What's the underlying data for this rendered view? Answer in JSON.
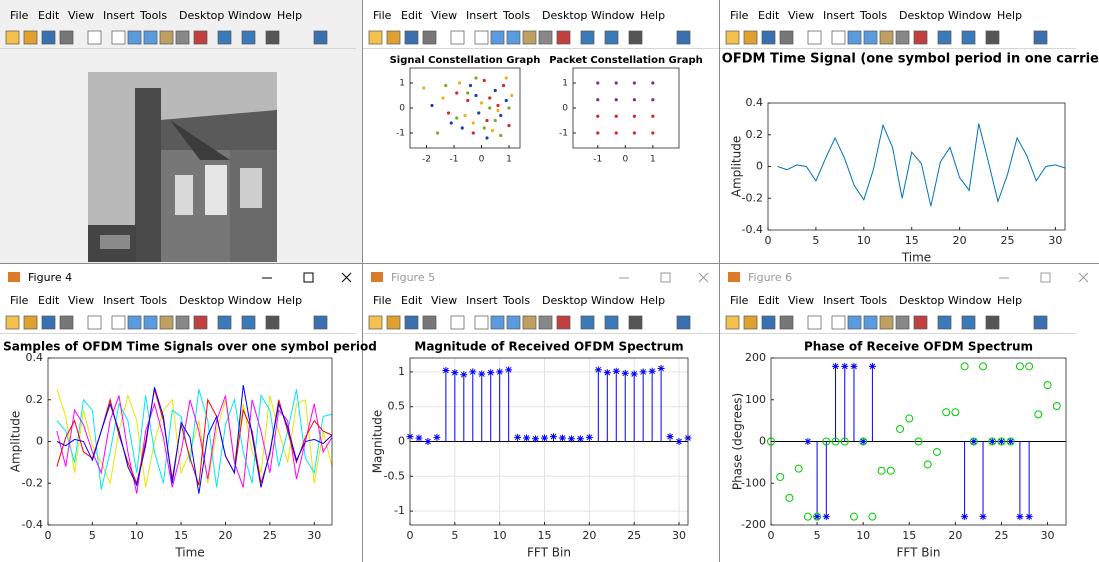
{
  "menu": [
    "File",
    "Edit",
    "View",
    "Insert",
    "Tools",
    "Desktop",
    "Window",
    "Help"
  ],
  "window_titles": [
    "Figure 4",
    "Figure 5",
    "Figure 6"
  ],
  "chart_data": [
    {
      "type": "scatter",
      "title": "Signal Constellation Graph",
      "xlim": [
        -2.6,
        1.4
      ],
      "xticks": [
        -2,
        -1,
        0,
        1
      ],
      "ylim": [
        -1.6,
        1.6
      ],
      "yticks": [
        -1,
        0,
        1
      ],
      "series": [
        {
          "color": "#d62728",
          "x": [
            -0.5,
            0.2,
            0.8,
            -1.2,
            0.1,
            -0.3,
            0.6,
            -0.9,
            1.0,
            0.3
          ],
          "values": [
            0.3,
            -0.5,
            0.9,
            -0.2,
            1.1,
            -1.0,
            0.1,
            0.6,
            -0.7,
            0.4
          ]
        },
        {
          "color": "#1f3fbf",
          "x": [
            -0.1,
            0.5,
            -0.7,
            -1.8,
            0.9,
            -0.4,
            0.2,
            -1.1,
            0.7,
            -0.2
          ],
          "values": [
            -0.2,
            0.7,
            -0.8,
            0.1,
            0.3,
            0.9,
            -1.2,
            -0.6,
            -0.3,
            0.5
          ]
        },
        {
          "color": "#edb120",
          "x": [
            -2.1,
            -0.6,
            0.4,
            1.1,
            -1.4,
            0.0,
            -0.8,
            0.6,
            -0.3,
            0.9
          ],
          "values": [
            0.8,
            -0.3,
            -0.9,
            0.5,
            0.4,
            0.2,
            1.0,
            -0.1,
            -0.6,
            1.2
          ]
        },
        {
          "color": "#77ac30",
          "x": [
            -1.6,
            0.3,
            -0.2,
            0.7,
            -0.9,
            1.0,
            -0.5,
            0.1,
            -1.3,
            0.5
          ],
          "values": [
            -1.0,
            0.0,
            1.2,
            -1.1,
            -0.4,
            0.0,
            0.6,
            -0.8,
            0.9,
            -0.5
          ]
        }
      ]
    },
    {
      "type": "scatter",
      "title": "Packet Constellation Graph",
      "xlim": [
        -1.9,
        1.95
      ],
      "xticks": [
        -1,
        0,
        1
      ],
      "ylim": [
        -1.6,
        1.6
      ],
      "yticks": [
        -1,
        0,
        1
      ],
      "series": [
        {
          "color": "#7e2f8e",
          "x": [
            -1,
            -0.33,
            0.33,
            1,
            -1,
            -0.33,
            0.33,
            1
          ],
          "values": [
            1,
            1,
            1,
            1,
            0.33,
            0.33,
            0.33,
            0.33
          ]
        },
        {
          "color": "#d62728",
          "x": [
            -1,
            -0.33,
            0.33,
            1,
            -1,
            -0.33,
            0.33,
            1
          ],
          "values": [
            -0.33,
            -0.33,
            -0.33,
            -0.33,
            -1,
            -1,
            -1,
            -1
          ]
        }
      ]
    },
    {
      "type": "line",
      "title": "OFDM Time Signal (one symbol period in one carrier)",
      "xlabel": "Time",
      "ylabel": "Amplitude",
      "xlim": [
        0,
        31
      ],
      "xticks": [
        0,
        5,
        10,
        15,
        20,
        25,
        30
      ],
      "ylim": [
        -0.4,
        0.4
      ],
      "yticks": [
        -0.4,
        -0.2,
        0,
        0.2,
        0.4
      ],
      "x": [
        1,
        2,
        3,
        4,
        5,
        6,
        7,
        8,
        9,
        10,
        11,
        12,
        13,
        14,
        15,
        16,
        17,
        18,
        19,
        20,
        21,
        22,
        23,
        24,
        25,
        26,
        27,
        28,
        29,
        30,
        31
      ],
      "series": [
        {
          "color": "#0072bd",
          "values": [
            0,
            -0.02,
            0.01,
            0,
            -0.09,
            0.05,
            0.18,
            0.05,
            -0.12,
            -0.21,
            -0.02,
            0.26,
            0.12,
            -0.2,
            0.09,
            0.02,
            -0.25,
            0.03,
            0.12,
            -0.07,
            -0.15,
            0.27,
            0.03,
            -0.22,
            -0.05,
            0.18,
            0.07,
            -0.09,
            0,
            0.01,
            -0.01
          ]
        }
      ]
    },
    {
      "type": "line",
      "title": "Samples of OFDM Time Signals over one symbol period",
      "xlabel": "Time",
      "ylabel": "Amplitude",
      "xlim": [
        0,
        32
      ],
      "xticks": [
        0,
        5,
        10,
        15,
        20,
        25,
        30
      ],
      "ylim": [
        -0.4,
        0.4
      ],
      "yticks": [
        -0.4,
        -0.2,
        0,
        0.2,
        0.4
      ],
      "x": [
        1,
        2,
        3,
        4,
        5,
        6,
        7,
        8,
        9,
        10,
        11,
        12,
        13,
        14,
        15,
        16,
        17,
        18,
        19,
        20,
        21,
        22,
        23,
        24,
        25,
        26,
        27,
        28,
        29,
        30,
        31,
        32
      ],
      "series": [
        {
          "color": "#e6e600",
          "values": [
            0.25,
            0.12,
            -0.15,
            0.15,
            -0.02,
            -0.1,
            -0.2,
            0.05,
            0.22,
            0.1,
            -0.22,
            0,
            0.15,
            0.2,
            -0.15,
            -0.05,
            0.1,
            -0.2,
            0.05,
            0.2,
            -0.1,
            0.18,
            -0.05,
            -0.15,
            0.22,
            0.05,
            -0.1,
            0.18,
            0.2,
            -0.2,
            0.05,
            -0.12
          ]
        },
        {
          "color": "#00e5ff",
          "values": [
            0.1,
            0.05,
            -0.1,
            0.2,
            0.15,
            -0.23,
            -0.05,
            0.18,
            0.1,
            -0.15,
            0.22,
            -0.05,
            -0.2,
            0.15,
            0.12,
            -0.1,
            0.25,
            0.1,
            -0.22,
            0.08,
            0.2,
            -0.05,
            -0.2,
            0.22,
            0.15,
            -0.12,
            0.05,
            0.25,
            -0.08,
            -0.15,
            0.12,
            0.13
          ]
        },
        {
          "color": "#ff00ff",
          "values": [
            0.05,
            -0.12,
            0.15,
            0.08,
            -0.05,
            -0.15,
            0.1,
            0.22,
            -0.05,
            -0.25,
            0.05,
            0.18,
            0.02,
            -0.22,
            -0.05,
            0.2,
            0.05,
            -0.18,
            0.1,
            0.22,
            -0.1,
            -0.22,
            0.2,
            0.05,
            -0.15,
            0.15,
            0.1,
            -0.18,
            0,
            0.18,
            -0.05,
            0.02
          ]
        },
        {
          "color": "#ff0000",
          "values": [
            -0.12,
            0.02,
            0.1,
            -0.05,
            -0.08,
            0.05,
            0.2,
            0.03,
            -0.1,
            -0.2,
            0,
            0.25,
            0.1,
            -0.18,
            0.08,
            -0.08,
            -0.21,
            0.2,
            0.12,
            -0.07,
            -0.15,
            0.15,
            0.05,
            -0.2,
            -0.06,
            0.2,
            0.05,
            -0.1,
            0.02,
            0.1,
            0.05,
            0.03
          ]
        },
        {
          "color": "#0000ff",
          "values": [
            0,
            -0.02,
            0.01,
            0,
            -0.09,
            0.05,
            0.18,
            0.05,
            -0.12,
            -0.21,
            -0.02,
            0.26,
            0.12,
            -0.2,
            0.09,
            0.02,
            -0.25,
            0.03,
            0.12,
            -0.07,
            -0.15,
            0.27,
            0.03,
            -0.22,
            -0.05,
            0.18,
            0.07,
            -0.09,
            0,
            0.01,
            -0.01,
            0.03
          ]
        }
      ]
    },
    {
      "type": "stem",
      "title": "Magnitude of Received OFDM Spectrum",
      "xlabel": "FFT Bin",
      "ylabel": "Magnitude",
      "grid": true,
      "xlim": [
        0,
        31
      ],
      "xticks": [
        0,
        5,
        10,
        15,
        20,
        25,
        30
      ],
      "ylim": [
        -1.2,
        1.2
      ],
      "yticks": [
        -1,
        -0.5,
        0,
        0.5,
        1
      ],
      "x": [
        0,
        1,
        2,
        3,
        4,
        5,
        6,
        7,
        8,
        9,
        10,
        11,
        12,
        13,
        14,
        15,
        16,
        17,
        18,
        19,
        20,
        21,
        22,
        23,
        24,
        25,
        26,
        27,
        28,
        29,
        30,
        31
      ],
      "series": [
        {
          "color": "#0000ff",
          "marker": "*",
          "stem": true,
          "values": [
            0.07,
            0.05,
            0.0,
            0.06,
            1.02,
            0.99,
            0.96,
            1.0,
            0.97,
            0.99,
            1.0,
            1.03,
            0.06,
            0.05,
            0.04,
            0.05,
            0.07,
            0.05,
            0.04,
            0.04,
            0.06,
            1.03,
            0.99,
            1.01,
            0.98,
            0.97,
            1.0,
            1.01,
            1.05,
            0.07,
            0.0,
            0.05
          ]
        }
      ]
    },
    {
      "type": "stem",
      "title": "Phase of Receive OFDM Spectrum",
      "xlabel": "FFT Bin",
      "ylabel": "Phase (degrees)",
      "xlim": [
        0,
        32
      ],
      "xticks": [
        0,
        5,
        10,
        15,
        20,
        25,
        30
      ],
      "ylim": [
        -200,
        200
      ],
      "yticks": [
        -200,
        -100,
        0,
        100,
        200
      ],
      "series": [
        {
          "color": "#0000ff",
          "marker": "*",
          "stem": true,
          "x": [
            4,
            5,
            6,
            7,
            8,
            9,
            10,
            11,
            21,
            22,
            23,
            24,
            25,
            26,
            27,
            28
          ],
          "values": [
            0,
            -180,
            -180,
            180,
            180,
            180,
            0,
            180,
            -180,
            0,
            -180,
            0,
            0,
            0,
            -180,
            -180
          ]
        },
        {
          "color": "#00cc00",
          "marker": "o",
          "stem": false,
          "x": [
            0,
            1,
            2,
            3,
            4,
            5,
            6,
            7,
            8,
            9,
            10,
            11,
            12,
            13,
            14,
            15,
            16,
            17,
            18,
            19,
            20,
            21,
            22,
            23,
            24,
            25,
            26,
            27,
            28,
            29,
            30,
            31
          ],
          "values": [
            0,
            -85,
            -135,
            -65,
            -180,
            -180,
            0,
            0,
            0,
            -180,
            0,
            -180,
            -70,
            -70,
            30,
            55,
            0,
            -55,
            -25,
            70,
            70,
            180,
            0,
            180,
            0,
            0,
            0,
            180,
            180,
            65,
            135,
            85
          ]
        }
      ]
    }
  ]
}
